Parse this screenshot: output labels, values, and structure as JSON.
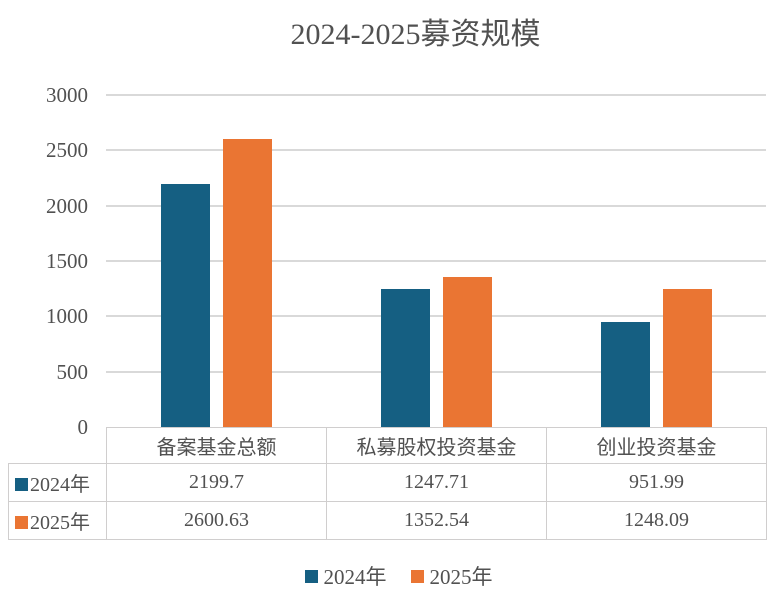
{
  "chart_data": {
    "type": "bar",
    "title": "2024-2025募资规模",
    "categories": [
      "备案基金总额",
      "私募股权投资基金",
      "创业投资基金"
    ],
    "series": [
      {
        "name": "2024年",
        "color": "#155F82",
        "values": [
          2199.7,
          1247.71,
          951.99
        ]
      },
      {
        "name": "2025年",
        "color": "#EA7533",
        "values": [
          2600.63,
          1352.54,
          1248.09
        ]
      }
    ],
    "ylim": [
      0,
      3000
    ],
    "yticks": [
      0,
      500,
      1000,
      1500,
      2000,
      2500,
      3000
    ],
    "grid": true,
    "gridline_color": "#D9D9D9",
    "table_border_color": "#D0CECE",
    "text_color": "#515151",
    "legend_position": "bottom",
    "show_data_table": true
  }
}
